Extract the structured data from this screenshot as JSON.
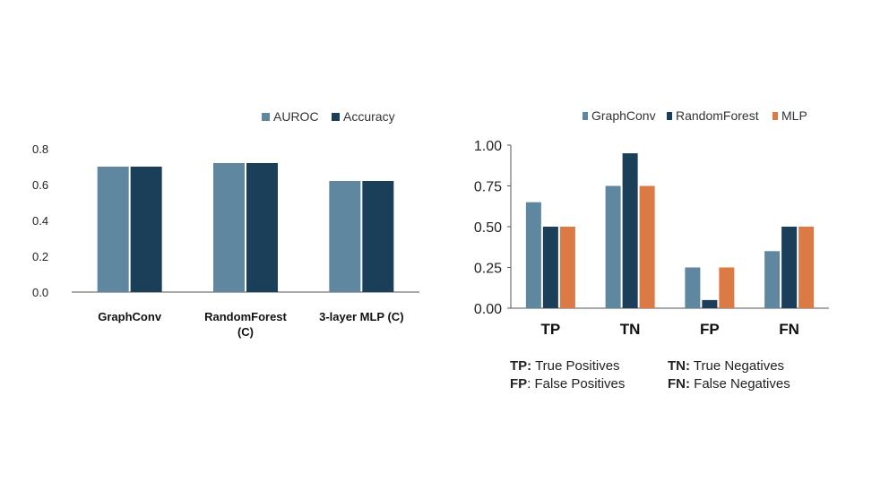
{
  "colors": {
    "auroc": "#5f88a0",
    "accuracy": "#1b3f59",
    "graphconv": "#5f88a0",
    "randomforest": "#1b3f59",
    "mlp": "#dc7a46",
    "axis": "#555555"
  },
  "chart_data": [
    {
      "type": "bar",
      "categories": [
        "GraphConv",
        "RandomForest (C)",
        "3-layer MLP (C)"
      ],
      "category_lines": [
        [
          "GraphConv"
        ],
        [
          "RandomForest",
          "(C)"
        ],
        [
          "3-layer MLP (C)"
        ]
      ],
      "series": [
        {
          "name": "AUROC",
          "values": [
            0.7,
            0.72,
            0.62
          ]
        },
        {
          "name": "Accuracy",
          "values": [
            0.7,
            0.72,
            0.62
          ]
        }
      ],
      "ylim": [
        0,
        0.8
      ],
      "yticks": [
        "0.0",
        "0.2",
        "0.4",
        "0.6",
        "0.8"
      ],
      "title": "",
      "xlabel": "",
      "ylabel": "",
      "legend": "top-right"
    },
    {
      "type": "bar",
      "categories": [
        "TP",
        "TN",
        "FP",
        "FN"
      ],
      "series": [
        {
          "name": "GraphConv",
          "values": [
            0.65,
            0.75,
            0.25,
            0.35
          ]
        },
        {
          "name": "RandomForest",
          "values": [
            0.5,
            0.95,
            0.05,
            0.5
          ]
        },
        {
          "name": "MLP",
          "values": [
            0.5,
            0.75,
            0.25,
            0.5
          ]
        }
      ],
      "ylim": [
        0,
        1.0
      ],
      "yticks": [
        "0.00",
        "0.25",
        "0.50",
        "0.75",
        "1.00"
      ],
      "title": "",
      "xlabel": "",
      "ylabel": "",
      "legend": "top"
    }
  ],
  "notes": {
    "tp": {
      "abbr": "TP:",
      "text": " True Positives"
    },
    "tn": {
      "abbr": "TN:",
      "text": " True Negatives"
    },
    "fp": {
      "abbr": "FP",
      "text": ": False Positives"
    },
    "fn": {
      "abbr": "FN:",
      "text": " False Negatives"
    }
  }
}
